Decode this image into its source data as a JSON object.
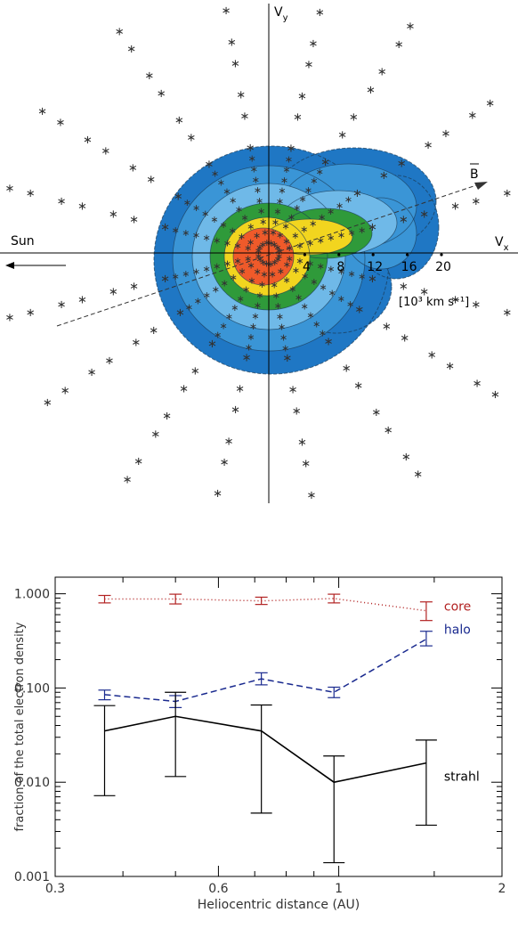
{
  "chart_data": [
    {
      "type": "contour",
      "axis_labels": {
        "x": "V",
        "x_sub": "x",
        "y": "V",
        "y_sub": "y"
      },
      "direction_label": "Sun",
      "field_label": "B",
      "units_label": "[10³ km s⁻¹]",
      "axis_tick_labels": [
        "4",
        "8",
        "12",
        "16",
        "20"
      ],
      "axis_ticks_vx": [
        4,
        8,
        12,
        16,
        20
      ],
      "x_range": [
        -20,
        20
      ],
      "y_range": [
        -18,
        18
      ],
      "field_angle_deg": 14,
      "contour_fill_colors": [
        "#1f77c4",
        "#3a95d6",
        "#6fb9e8",
        "#2f9a3a",
        "#f2d51f",
        "#ef5a2a"
      ],
      "contour_line_color": "#1b3a55",
      "marker_color": "#333333"
    },
    {
      "type": "line",
      "xlabel": "Heliocentric distance (AU)",
      "ylabel": "fraction of the total electron density",
      "x_scale": "log",
      "y_scale": "log",
      "xlim": [
        0.3,
        2.0
      ],
      "ylim": [
        0.001,
        1.5
      ],
      "x_ticks": [
        0.3,
        0.6,
        1,
        2
      ],
      "x_tick_labels": [
        "0.3",
        "0.6",
        "1",
        "2"
      ],
      "y_ticks": [
        0.001,
        0.01,
        0.1,
        1.0
      ],
      "y_tick_labels": [
        "0.001",
        "0.010",
        "0.100",
        "1.000"
      ],
      "series": [
        {
          "name": "core",
          "color": "#b22222",
          "style": "dotted",
          "x": [
            0.37,
            0.5,
            0.72,
            0.98,
            1.45
          ],
          "y": [
            0.88,
            0.88,
            0.84,
            0.89,
            0.66
          ],
          "err_low": [
            0.8,
            0.78,
            0.77,
            0.8,
            0.52
          ],
          "err_high": [
            0.96,
            0.99,
            0.92,
            0.99,
            0.82
          ]
        },
        {
          "name": "halo",
          "color": "#1a2a8f",
          "style": "dashed",
          "x": [
            0.37,
            0.5,
            0.72,
            0.98,
            1.45
          ],
          "y": [
            0.085,
            0.072,
            0.125,
            0.09,
            0.33
          ],
          "err_low": [
            0.075,
            0.062,
            0.108,
            0.079,
            0.28
          ],
          "err_high": [
            0.095,
            0.083,
            0.145,
            0.102,
            0.4
          ]
        },
        {
          "name": "strahl",
          "color": "#000000",
          "style": "solid",
          "x": [
            0.37,
            0.5,
            0.72,
            0.98,
            1.45
          ],
          "y": [
            0.035,
            0.05,
            0.035,
            0.01,
            0.016
          ],
          "err_low": [
            0.0072,
            0.0115,
            0.0047,
            0.0014,
            0.0035
          ],
          "err_high": [
            0.065,
            0.09,
            0.066,
            0.019,
            0.028
          ]
        }
      ]
    }
  ]
}
